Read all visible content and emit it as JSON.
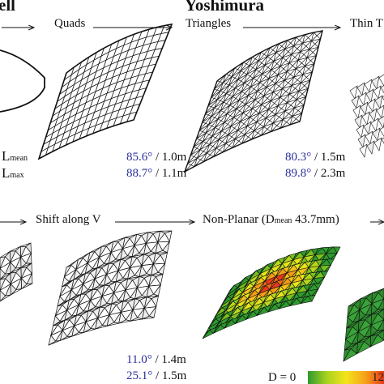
{
  "headers": {
    "left_fragment": "ell",
    "center": "Yoshimura"
  },
  "steps_top": {
    "quads": "Quads",
    "triangles": "Triangles",
    "thin": "Thin T"
  },
  "steps_bottom": {
    "shift": "Shift along V",
    "nonplanar": "Non-Planar (D",
    "nonplanar_sub": "mean",
    "nonplanar_value": " 43.7mm)"
  },
  "legend_left": {
    "l": "L",
    "mean_sub": "mean",
    "max_sub": "max"
  },
  "metrics": {
    "quads": {
      "mean_angle": "85.6°",
      "mean_len": " / 1.0m",
      "max_angle": "88.7°",
      "max_len": " / 1.1m"
    },
    "triangles": {
      "mean_angle": "80.3°",
      "mean_len": " / 1.5m",
      "max_angle": "89.8°",
      "max_len": " / 2.3m"
    },
    "shift": {
      "mean_angle": "11.0°",
      "mean_len": " / 1.4m",
      "max_angle": "25.1°",
      "max_len": " / 1.5m"
    }
  },
  "colorbar": {
    "min_label": "D = 0",
    "max_label": "12"
  },
  "colors": {
    "metric_blue": "#28309a",
    "mesh_line": "#111111",
    "deviation_low": "#2e9a2e",
    "deviation_high": "#e83a1a"
  }
}
